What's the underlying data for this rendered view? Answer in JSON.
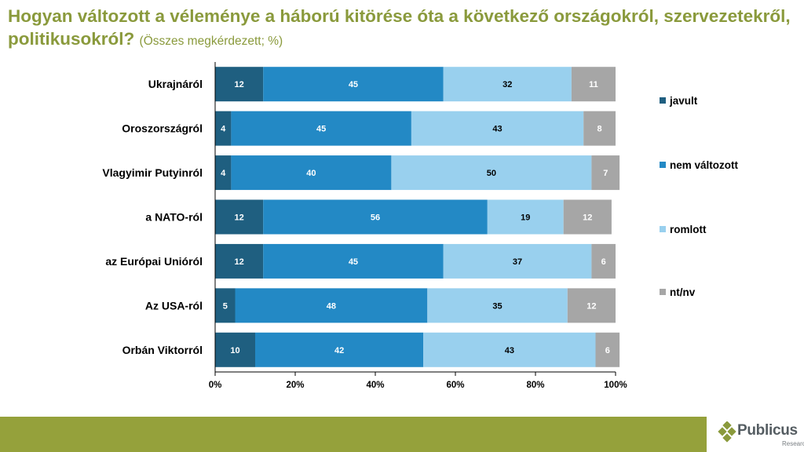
{
  "title": {
    "main": "Hogyan változott a véleménye a háború kitörése óta a következő országokról, szervezetekről, politikusokról?",
    "note": "(Összes megkérdezett; %)"
  },
  "chart_data": {
    "type": "bar",
    "orientation": "horizontal-stacked-100",
    "categories": [
      "Ukrajnáról",
      "Oroszországról",
      "Vlagyimir Putyinról",
      "a NATO-ról",
      "az Európai Unióról",
      "Az USA-ról",
      "Orbán Viktorról"
    ],
    "series": [
      {
        "name": "javult",
        "color": "#1f5f80",
        "values": [
          12,
          4,
          4,
          12,
          12,
          5,
          10
        ]
      },
      {
        "name": "nem változott",
        "color": "#2389c5",
        "values": [
          45,
          45,
          40,
          56,
          45,
          48,
          42
        ]
      },
      {
        "name": "romlott",
        "color": "#99d0ee",
        "values": [
          32,
          43,
          50,
          19,
          37,
          35,
          43
        ]
      },
      {
        "name": "nt/nv",
        "color": "#a6a6a6",
        "values": [
          11,
          8,
          7,
          12,
          6,
          12,
          6
        ]
      }
    ],
    "x_ticks": [
      "0%",
      "20%",
      "40%",
      "60%",
      "80%",
      "100%"
    ],
    "xlim": [
      0,
      100
    ],
    "legend_position": "right"
  },
  "branding": {
    "logo_text": "Publicus",
    "logo_subtext": "Research",
    "accent_color": "#95a13b"
  }
}
